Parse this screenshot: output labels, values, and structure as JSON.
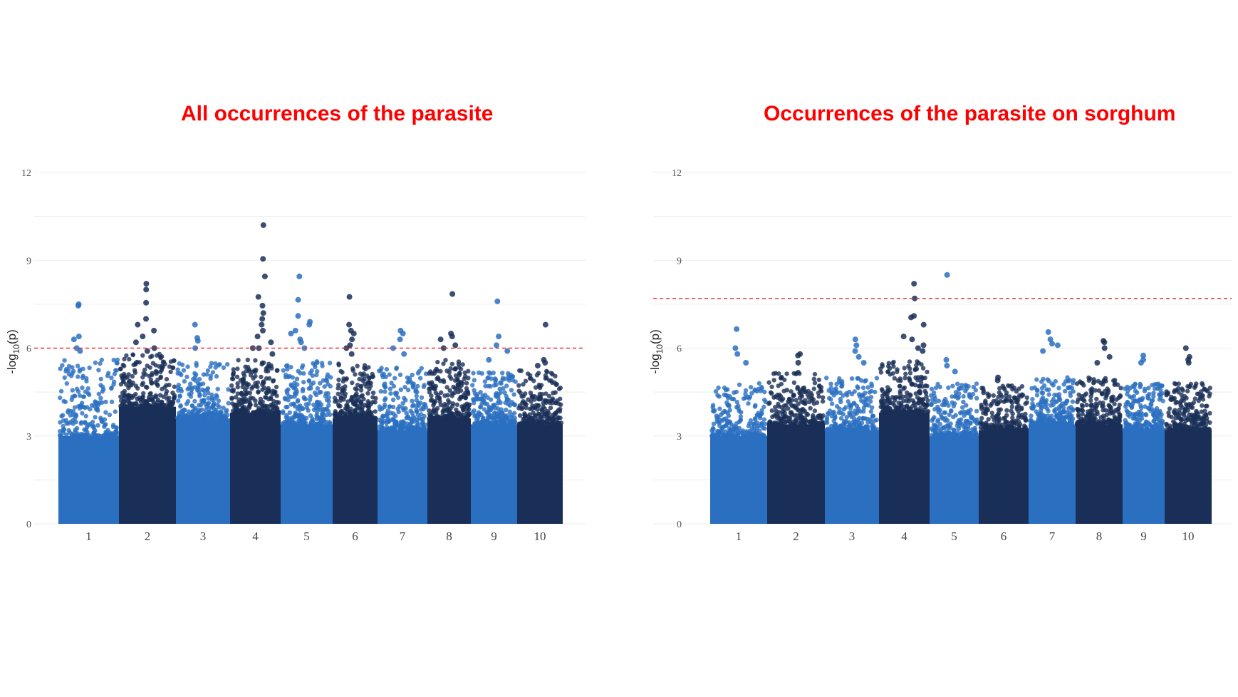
{
  "chart_data": [
    {
      "type": "scatter",
      "title": "All occurrences of the parasite",
      "ylabel": "-log10(p)",
      "ylabel_parts": {
        "base": "-log",
        "sub": "10",
        "tail": "(p)"
      },
      "xlabel": "",
      "ylim": [
        0,
        12
      ],
      "yticks": [
        "0",
        "3",
        "6",
        "9",
        "12"
      ],
      "threshold": 6,
      "categories": [
        "1",
        "2",
        "3",
        "4",
        "5",
        "6",
        "7",
        "8",
        "9",
        "10"
      ],
      "colors": {
        "light": "#2a6fc0",
        "dark": "#1a2f58",
        "threshold": "#ee3333",
        "grid": "#ececec",
        "title": "#ff0000"
      },
      "chromosomes": [
        {
          "label": "1",
          "bulk_top": 3.0,
          "tail_top": 5.6,
          "peaks": [
            7.5,
            7.45,
            6.4,
            6.3,
            6.0,
            5.9
          ]
        },
        {
          "label": "2",
          "bulk_top": 4.0,
          "tail_top": 5.8,
          "peaks": [
            8.2,
            8.0,
            7.55,
            7.0,
            6.8,
            6.6,
            6.4,
            6.2,
            6.0,
            5.9
          ]
        },
        {
          "label": "3",
          "bulk_top": 3.6,
          "tail_top": 5.5,
          "peaks": [
            6.8,
            6.35,
            6.25,
            6.0
          ]
        },
        {
          "label": "4",
          "bulk_top": 3.8,
          "tail_top": 5.6,
          "peaks": [
            10.2,
            9.05,
            8.45,
            7.75,
            7.45,
            7.2,
            7.0,
            6.8,
            6.6,
            6.4,
            6.2,
            6.0,
            6.0,
            5.8
          ]
        },
        {
          "label": "5",
          "bulk_top": 3.4,
          "tail_top": 5.6,
          "peaks": [
            8.45,
            7.65,
            7.1,
            6.9,
            6.8,
            6.6,
            6.5,
            6.3,
            6.2,
            6.0
          ]
        },
        {
          "label": "6",
          "bulk_top": 3.6,
          "tail_top": 5.5,
          "peaks": [
            7.75,
            6.8,
            6.6,
            6.5,
            6.3,
            6.1,
            6.0,
            5.8
          ]
        },
        {
          "label": "7",
          "bulk_top": 3.2,
          "tail_top": 5.4,
          "peaks": [
            6.6,
            6.5,
            6.3,
            6.0,
            5.8
          ]
        },
        {
          "label": "8",
          "bulk_top": 3.6,
          "tail_top": 5.6,
          "peaks": [
            7.85,
            6.5,
            6.4,
            6.3,
            6.1,
            6.0
          ]
        },
        {
          "label": "9",
          "bulk_top": 3.4,
          "tail_top": 5.2,
          "peaks": [
            7.6,
            6.4,
            6.1,
            5.9,
            5.6
          ]
        },
        {
          "label": "10",
          "bulk_top": 3.4,
          "tail_top": 5.3,
          "peaks": [
            6.8,
            5.6,
            5.5,
            5.4
          ]
        }
      ]
    },
    {
      "type": "scatter",
      "title": "Occurrences of the parasite on sorghum",
      "ylabel": "-log10(p)",
      "ylabel_parts": {
        "base": "-log",
        "sub": "10",
        "tail": "(p)"
      },
      "xlabel": "",
      "ylim": [
        0,
        12
      ],
      "yticks": [
        "0",
        "3",
        "6",
        "9",
        "12"
      ],
      "threshold": 7.7,
      "categories": [
        "1",
        "2",
        "3",
        "4",
        "5",
        "6",
        "7",
        "8",
        "9",
        "10"
      ],
      "colors": {
        "light": "#2a6fc0",
        "dark": "#1a2f58",
        "threshold": "#ee3333",
        "grid": "#ececec",
        "title": "#ff0000"
      },
      "chromosomes": [
        {
          "label": "1",
          "bulk_top": 3.0,
          "tail_top": 4.8,
          "peaks": [
            6.65,
            6.0,
            5.8,
            5.5
          ]
        },
        {
          "label": "2",
          "bulk_top": 3.4,
          "tail_top": 5.2,
          "peaks": [
            5.8,
            5.75,
            5.5
          ]
        },
        {
          "label": "3",
          "bulk_top": 3.2,
          "tail_top": 5.0,
          "peaks": [
            6.3,
            6.1,
            5.9,
            5.7,
            5.5
          ]
        },
        {
          "label": "4",
          "bulk_top": 3.8,
          "tail_top": 5.6,
          "peaks": [
            8.2,
            7.7,
            7.1,
            7.05,
            6.8,
            6.4,
            6.3,
            6.1,
            6.0,
            5.9
          ]
        },
        {
          "label": "5",
          "bulk_top": 3.0,
          "tail_top": 4.8,
          "peaks": [
            8.5,
            5.6,
            5.4,
            5.2
          ]
        },
        {
          "label": "6",
          "bulk_top": 3.2,
          "tail_top": 4.8,
          "peaks": [
            5.0,
            4.9
          ]
        },
        {
          "label": "7",
          "bulk_top": 3.4,
          "tail_top": 5.0,
          "peaks": [
            6.55,
            6.3,
            6.15,
            6.1,
            5.9
          ]
        },
        {
          "label": "8",
          "bulk_top": 3.4,
          "tail_top": 5.0,
          "peaks": [
            6.25,
            6.2,
            6.0,
            5.7,
            5.5
          ]
        },
        {
          "label": "9",
          "bulk_top": 3.2,
          "tail_top": 4.8,
          "peaks": [
            5.75,
            5.6,
            5.5
          ]
        },
        {
          "label": "10",
          "bulk_top": 3.2,
          "tail_top": 4.8,
          "peaks": [
            6.0,
            5.7,
            5.6,
            5.5
          ]
        }
      ]
    }
  ]
}
